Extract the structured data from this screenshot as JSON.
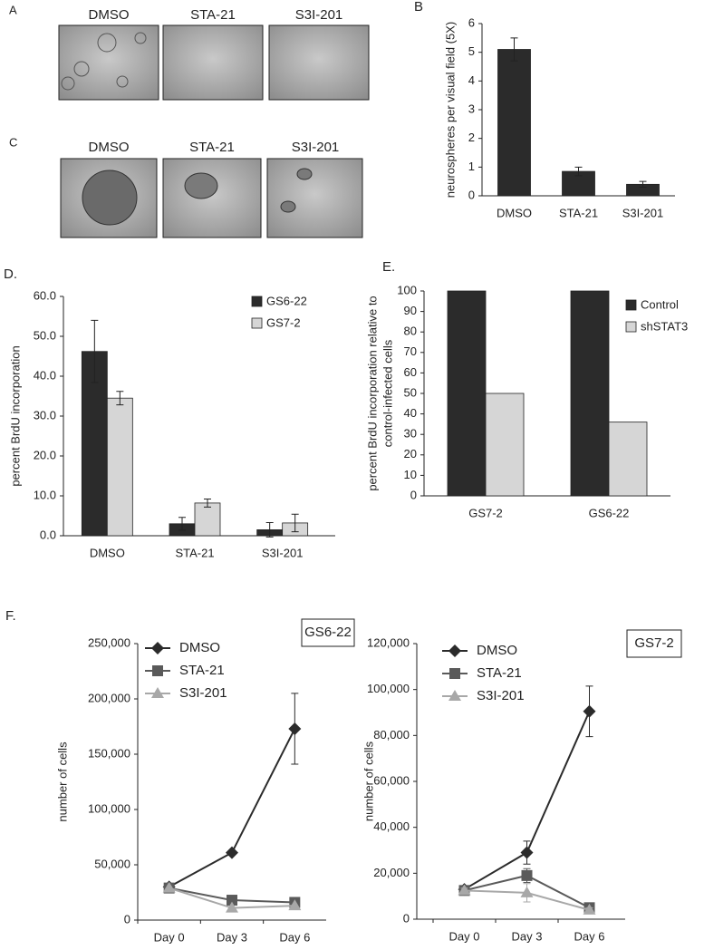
{
  "panel_a": {
    "label": "A",
    "titles": [
      "DMSO",
      "STA-21",
      "S3I-201"
    ]
  },
  "panel_c": {
    "label": "C",
    "titles": [
      "DMSO",
      "STA-21",
      "S3I-201"
    ]
  },
  "chart_data": [
    {
      "type": "bar",
      "panel": "B",
      "ylabel": "neurospheres per visual field (5X)",
      "categories": [
        "DMSO",
        "STA-21",
        "S3I-201"
      ],
      "values": [
        5.1,
        0.85,
        0.4
      ],
      "errors": [
        0.4,
        0.15,
        0.1
      ],
      "color": "#2b2b2b",
      "ylim": [
        0,
        6
      ],
      "yticks": [
        0,
        1,
        2,
        3,
        4,
        5,
        6
      ]
    },
    {
      "type": "bar",
      "panel": "D.",
      "ylabel": "percent BrdU incorporation",
      "categories": [
        "DMSO",
        "STA-21",
        "S3I-201"
      ],
      "series": [
        {
          "name": "GS6-22",
          "color": "#2b2b2b",
          "values": [
            46.2,
            3.0,
            1.5
          ],
          "errors": [
            7.8,
            1.6,
            1.8
          ]
        },
        {
          "name": "GS7-2",
          "color": "#d6d6d6",
          "values": [
            34.5,
            8.2,
            3.2
          ],
          "errors": [
            1.7,
            1.0,
            2.2
          ]
        }
      ],
      "ylim": [
        0,
        60
      ],
      "yticks": [
        {
          "value": 0,
          "label": "0.0"
        },
        {
          "value": 10,
          "label": "10.0"
        },
        {
          "value": 20,
          "label": "20.0"
        },
        {
          "value": 30,
          "label": "30.0"
        },
        {
          "value": 40,
          "label": "40.0"
        },
        {
          "value": 50,
          "label": "50.0"
        },
        {
          "value": 60,
          "label": "60.0"
        }
      ],
      "legend": "top-right"
    },
    {
      "type": "bar",
      "panel": "E.",
      "ylabel": [
        "percent BrdU incorporation relative to",
        "control-infected cells"
      ],
      "categories": [
        "GS7-2",
        "GS6-22"
      ],
      "series": [
        {
          "name": "Control",
          "color": "#2b2b2b",
          "values": [
            100,
            100
          ]
        },
        {
          "name": "shSTAT3",
          "color": "#d6d6d6",
          "values": [
            50,
            36
          ]
        }
      ],
      "ylim": [
        0,
        100
      ],
      "yticks": [
        0,
        10,
        20,
        30,
        40,
        50,
        60,
        70,
        80,
        90,
        100
      ],
      "legend": "top-right"
    },
    {
      "type": "line",
      "panel": "F.",
      "title": "GS6-22",
      "ylabel": "number of cells",
      "categories": [
        "Day 0",
        "Day 3",
        "Day 6"
      ],
      "series": [
        {
          "name": "DMSO",
          "color": "#2b2b2b",
          "marker": "diamond",
          "values": [
            30000,
            61000,
            173000
          ],
          "errors": [
            2000,
            2000,
            32000
          ]
        },
        {
          "name": "STA-21",
          "color": "#5a5a5a",
          "marker": "square",
          "values": [
            29000,
            18000,
            16000
          ]
        },
        {
          "name": "S3I-201",
          "color": "#a8a8a8",
          "marker": "triangle",
          "values": [
            29000,
            11000,
            13000
          ]
        }
      ],
      "ylim": [
        0,
        250000
      ],
      "yticks": [
        0,
        {
          "value": 50000,
          "label": "50,000"
        },
        {
          "value": 100000,
          "label": "100,000"
        },
        {
          "value": 150000,
          "label": "150,000"
        },
        {
          "value": 200000,
          "label": "200,000"
        },
        {
          "value": 250000,
          "label": "250,000"
        }
      ],
      "legend": "top-left"
    },
    {
      "type": "line",
      "title": "GS7-2",
      "ylabel": "number of cells",
      "categories": [
        "Day 0",
        "Day 3",
        "Day 6"
      ],
      "series": [
        {
          "name": "DMSO",
          "color": "#2b2b2b",
          "marker": "diamond",
          "values": [
            13000,
            29000,
            90500
          ],
          "errors": [
            1000,
            5000,
            11000
          ]
        },
        {
          "name": "STA-21",
          "color": "#5a5a5a",
          "marker": "square",
          "values": [
            12500,
            19000,
            5000
          ],
          "errors": [
            1000,
            3000,
            1000
          ]
        },
        {
          "name": "S3I-201",
          "color": "#a8a8a8",
          "marker": "triangle",
          "values": [
            12500,
            11500,
            4000
          ],
          "errors": [
            1000,
            4000,
            1000
          ]
        }
      ],
      "ylim": [
        0,
        120000
      ],
      "yticks": [
        0,
        {
          "value": 20000,
          "label": "20,000"
        },
        {
          "value": 40000,
          "label": "40,000"
        },
        {
          "value": 60000,
          "label": "60,000"
        },
        {
          "value": 80000,
          "label": "80,000"
        },
        {
          "value": 100000,
          "label": "100,000"
        },
        {
          "value": 120000,
          "label": "120,000"
        }
      ],
      "legend": "top-left"
    }
  ]
}
